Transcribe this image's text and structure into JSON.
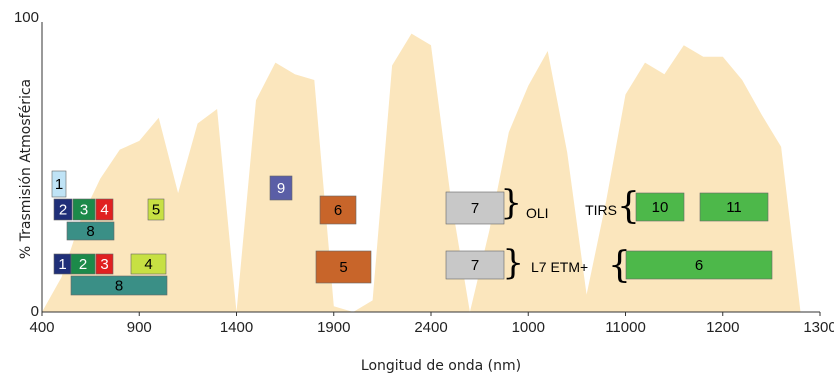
{
  "chart_data": {
    "type": "area",
    "title": "",
    "xlabel": "Longitud de onda (nm)",
    "ylabel": "% Trasmisión Atmosférica",
    "ylim": [
      0,
      100
    ],
    "y_ticks": [
      "100",
      "0"
    ],
    "x_ticks": [
      "400",
      "900",
      "1400",
      "1900",
      "2400",
      "1000",
      "11000",
      "1200",
      "1300"
    ],
    "x_scale": "segmented (tick labels as printed)",
    "series": [
      {
        "fill_color": "#fbe6bd",
        "x_tick_index": [
          0,
          0.2,
          0.4,
          0.6,
          0.8,
          1,
          1.2,
          1.4,
          1.6,
          1.8,
          2.0,
          2.2,
          2.4,
          2.6,
          2.8,
          3.0,
          3.2,
          3.4,
          3.6,
          3.8,
          4.0,
          4.2,
          4.4,
          4.6,
          4.8,
          5.0,
          5.2,
          5.4,
          5.6,
          5.8,
          6.0,
          6.2,
          6.4,
          6.6,
          6.8,
          7.0,
          7.2,
          7.4,
          7.6,
          7.8,
          8.0
        ],
        "values": [
          0,
          14,
          30,
          46,
          54,
          61,
          67,
          43,
          63,
          70,
          0,
          75,
          86,
          84,
          78,
          2,
          0,
          4,
          85,
          98,
          90,
          40,
          0,
          30,
          62,
          80,
          88,
          55,
          6,
          40,
          75,
          88,
          80,
          92,
          86,
          90,
          80,
          70,
          55,
          0,
          0
        ]
      }
    ],
    "sensor_groups": [
      {
        "label": "OLI",
        "bands": [
          {
            "label": "1",
            "color": "#bfe3f6",
            "position": "400-460"
          },
          {
            "label": "2",
            "color": "#1f2f78",
            "position": "460-530"
          },
          {
            "label": "3",
            "color": "#1c8a4a",
            "position": "530-600"
          },
          {
            "label": "4",
            "color": "#e02020",
            "position": "620-690"
          },
          {
            "label": "8",
            "color": "#3a8f86",
            "position": "500-690"
          },
          {
            "label": "5",
            "color": "#c7e043",
            "position": "850-880"
          },
          {
            "label": "9",
            "color": "#5a5ea6",
            "position": "1360-1390"
          },
          {
            "label": "6",
            "color": "#c8652a",
            "position": "1570-1650"
          },
          {
            "label": "7",
            "color": "#c8c8c8",
            "position": "2110-2290"
          }
        ]
      },
      {
        "label": "L7 ETM+",
        "bands": [
          {
            "label": "1",
            "color": "#1f2f78",
            "position": "450-520"
          },
          {
            "label": "2",
            "color": "#1c8a4a",
            "position": "520-600"
          },
          {
            "label": "3",
            "color": "#e02020",
            "position": "630-690"
          },
          {
            "label": "4",
            "color": "#c7e043",
            "position": "770-900"
          },
          {
            "label": "8",
            "color": "#3a8f86",
            "position": "520-900"
          },
          {
            "label": "5",
            "color": "#c8652a",
            "position": "1550-1750"
          },
          {
            "label": "7",
            "color": "#c8c8c8",
            "position": "2090-2350"
          }
        ]
      },
      {
        "label": "TIRS",
        "bands": [
          {
            "label": "10",
            "color": "#4db84a",
            "position": "1060-1130"
          },
          {
            "label": "11",
            "color": "#4db84a",
            "position": "1150-1250"
          }
        ]
      },
      {
        "label": "",
        "bands": [
          {
            "label": "6",
            "color": "#4db84a",
            "position": "1040-1250"
          }
        ]
      }
    ],
    "grid": false,
    "legend": "none"
  }
}
